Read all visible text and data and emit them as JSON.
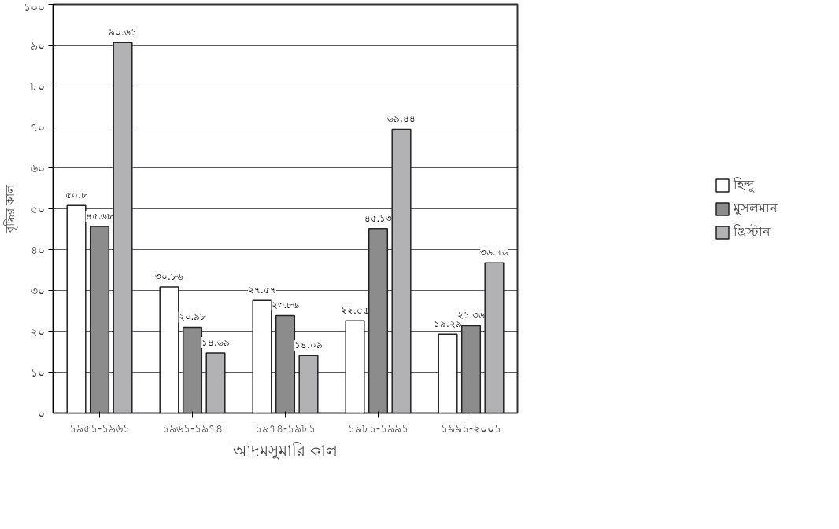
{
  "chart_data": {
    "type": "bar",
    "xlabel": "আদমসুমারি কাল",
    "ylabel": "বৃদ্ধির কাল",
    "categories": [
      "১৯৫১-১৯৬১",
      "১৯৬১-১৯৭৪",
      "১৯৭৪-১৯৮১",
      "১৯৮১-১৯৯১",
      "১৯৯১-২০০১"
    ],
    "series": [
      {
        "name": "হিন্দু",
        "color": "#ffffff",
        "values": [
          50.8,
          30.86,
          27.57,
          22.55,
          19.29
        ],
        "value_labels": [
          "৫০.৮",
          "৩০.৮৬",
          "২৭.৫৭",
          "২২.৫৫",
          "১৯.২৯"
        ]
      },
      {
        "name": "মুসলমান",
        "color": "#8c8c8c",
        "values": [
          45.68,
          20.98,
          23.86,
          45.13,
          21.36
        ],
        "value_labels": [
          "৪৫.৬৮",
          "২০.৯৮",
          "২৩.৮৬",
          "৪৫.১৩",
          "২১.৩৬"
        ]
      },
      {
        "name": "খ্রিস্টান",
        "color": "#b2b2b4",
        "values": [
          90.61,
          14.69,
          14.09,
          69.44,
          36.76
        ],
        "value_labels": [
          "৯০.৬১",
          "১৪.৬৯",
          "১৪.০৯",
          "৬৯.৪৪",
          "৩৬.৭৬"
        ]
      }
    ],
    "ylim": [
      0,
      100
    ],
    "yticks": [
      {
        "value": 0,
        "label": "০"
      },
      {
        "value": 10,
        "label": "১০"
      },
      {
        "value": 20,
        "label": "২০"
      },
      {
        "value": 30,
        "label": "৩০"
      },
      {
        "value": 40,
        "label": "৪০"
      },
      {
        "value": 50,
        "label": "৫০"
      },
      {
        "value": 60,
        "label": "৬০"
      },
      {
        "value": 70,
        "label": "৭০"
      },
      {
        "value": 80,
        "label": "৮০"
      },
      {
        "value": 90,
        "label": "৯০"
      },
      {
        "value": 100,
        "label": "১০০"
      }
    ],
    "grid": "y",
    "legend": "right"
  }
}
